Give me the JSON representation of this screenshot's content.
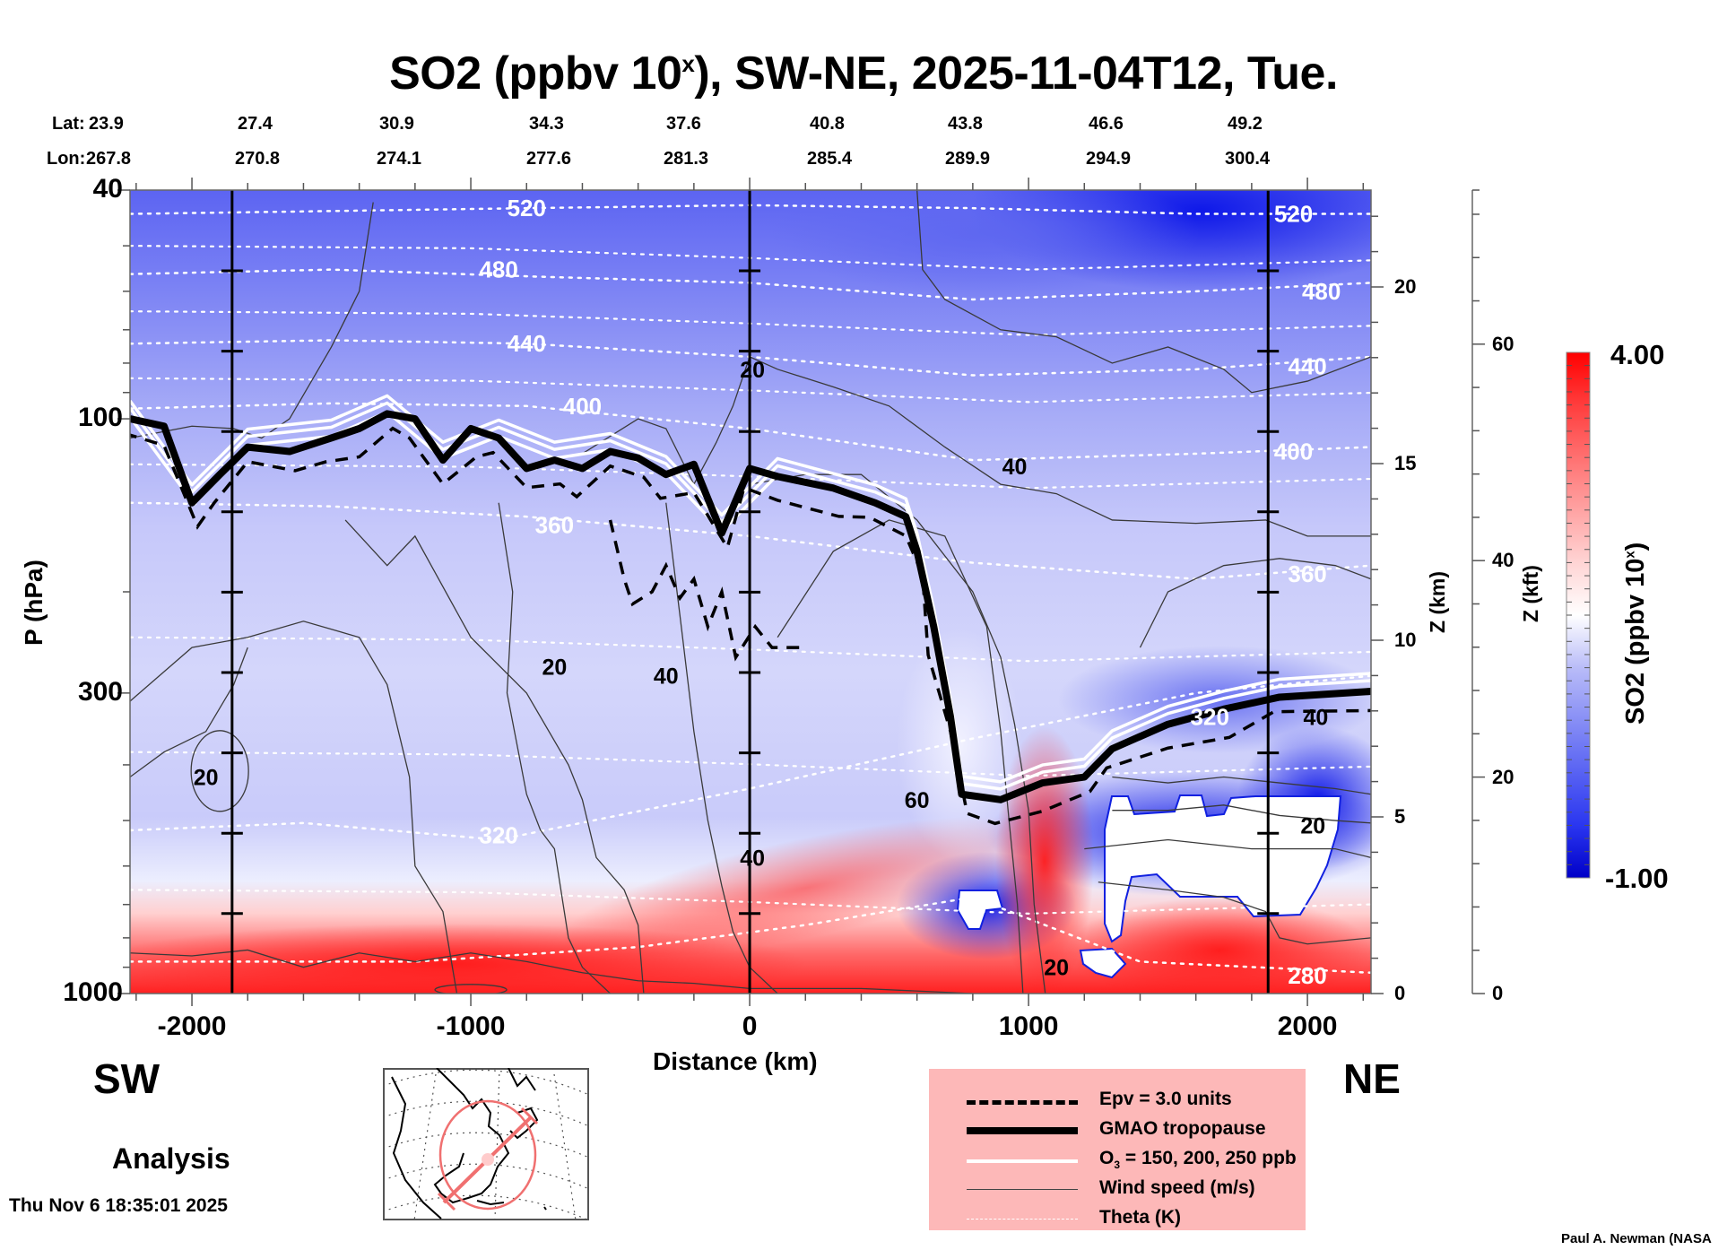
{
  "title": {
    "main": "SO2 (ppbv 10",
    "sup": "x",
    "rest": "), SW-NE, 2025-11-04T12, Tue."
  },
  "geo": {
    "lat_label": "Lat:",
    "lon_label": "Lon:",
    "lat": [
      "23.9",
      "27.4",
      "30.9",
      "34.3",
      "37.6",
      "40.8",
      "43.8",
      "46.6",
      "49.2"
    ],
    "lon": [
      "267.8",
      "270.8",
      "274.1",
      "277.6",
      "281.3",
      "285.4",
      "289.9",
      "294.9",
      "300.4"
    ]
  },
  "labels": {
    "sw": "SW",
    "ne": "NE",
    "analysis": "Analysis",
    "timestamp": "Thu Nov  6 18:35:01 2025",
    "credit": "Paul A. Newman (NASA"
  },
  "legend": {
    "items": [
      {
        "style": "dashed",
        "text": "Epv = 3.0 units"
      },
      {
        "style": "thick",
        "text": "GMAO tropopause"
      },
      {
        "style": "white",
        "text_pre": "O",
        "text_sub": "3",
        "text": " = 150, 200, 250 ppb"
      },
      {
        "style": "thin",
        "text": "Wind speed (m/s)"
      },
      {
        "style": "dotted",
        "text": "Theta (K)"
      }
    ]
  },
  "colors": {
    "legend_bg": "#fdb8b8",
    "cbar_low": "#0000cc",
    "cbar_mid": "#ffffff",
    "cbar_high": "#ff0000",
    "theta_line": "#ffffff",
    "wind_line": "#3a3a3a",
    "map_circle": "#f07070"
  },
  "chart_data": {
    "type": "heatmap",
    "title": "SO2 (ppbv 10^x), SW-NE, 2025-11-04T12, Tue.",
    "xlabel": "Distance (km)",
    "ylabel": "P (hPa)",
    "y2label": "Z (km)",
    "y3label": "Z (kft)",
    "colorbar_label": "SO2 (ppbv 10^x)",
    "xlim": [
      -2222,
      2228
    ],
    "ylim": [
      1000,
      40
    ],
    "yscale": "log",
    "xticks": [
      -2000,
      -1000,
      0,
      1000,
      2000
    ],
    "xtick_labels": [
      "-2000",
      "-1000",
      "0",
      "1000",
      "2000"
    ],
    "yticks": [
      40,
      100,
      300,
      1000
    ],
    "ytick_labels": [
      "40",
      "100",
      "300",
      "1000"
    ],
    "zkm_ticks": [
      0,
      5,
      10,
      15,
      20
    ],
    "zkm_tick_labels": [
      "0",
      "5",
      "10",
      "15",
      "20"
    ],
    "zkft_ticks": [
      0,
      20,
      40,
      60
    ],
    "zkft_tick_labels": [
      "0",
      "20",
      "40",
      "60"
    ],
    "colorbar": {
      "min": -1.0,
      "max": 4.0,
      "min_label": "-1.00",
      "max_label": "4.00",
      "levels": 40
    },
    "grid": false,
    "vertical_markers_km": [
      -1856,
      0,
      1859
    ],
    "theta_contours": [
      {
        "level": 520,
        "label": "520",
        "points": [
          [
            -2222,
            44
          ],
          [
            -1500,
            43.5
          ],
          [
            -800,
            43
          ],
          [
            0,
            42.5
          ],
          [
            800,
            43
          ],
          [
            1600,
            44
          ],
          [
            2228,
            44
          ]
        ],
        "label_at": [
          [
            -800,
            43
          ],
          [
            1950,
            44
          ]
        ]
      },
      {
        "level": 480,
        "label": "480",
        "points": [
          [
            -2222,
            56
          ],
          [
            -1500,
            55
          ],
          [
            -800,
            56.5
          ],
          [
            0,
            58
          ],
          [
            800,
            62
          ],
          [
            1600,
            60
          ],
          [
            2228,
            58
          ]
        ],
        "label_at": [
          [
            -900,
            55
          ],
          [
            2050,
            60
          ]
        ]
      },
      {
        "level": 440,
        "label": "440",
        "points": [
          [
            -2222,
            74
          ],
          [
            -1500,
            73
          ],
          [
            -800,
            74
          ],
          [
            0,
            78
          ],
          [
            800,
            84
          ],
          [
            1600,
            82
          ],
          [
            2228,
            78
          ]
        ],
        "label_at": [
          [
            -800,
            74
          ],
          [
            2000,
            81
          ]
        ]
      },
      {
        "level": 400,
        "label": "400",
        "points": [
          [
            -2222,
            96
          ],
          [
            -1500,
            94
          ],
          [
            -800,
            95
          ],
          [
            0,
            104
          ],
          [
            800,
            118
          ],
          [
            1600,
            115
          ],
          [
            2228,
            112
          ]
        ],
        "label_at": [
          [
            -600,
            95
          ],
          [
            1950,
            114
          ]
        ]
      },
      {
        "level": 360,
        "label": "360",
        "points": [
          [
            -2222,
            140
          ],
          [
            -1500,
            142
          ],
          [
            -800,
            148
          ],
          [
            0,
            160
          ],
          [
            800,
            178
          ],
          [
            1600,
            190
          ],
          [
            2228,
            180
          ]
        ],
        "label_at": [
          [
            -700,
            153
          ],
          [
            2000,
            186
          ]
        ]
      },
      {
        "level": 320,
        "label": "320",
        "points": [
          [
            -2222,
            520
          ],
          [
            -1600,
            505
          ],
          [
            -900,
            540
          ],
          [
            0,
            440
          ],
          [
            800,
            360
          ],
          [
            1600,
            300
          ],
          [
            2228,
            280
          ]
        ],
        "label_at": [
          [
            -900,
            530
          ],
          [
            1650,
            330
          ]
        ]
      },
      {
        "level": 280,
        "label": "280",
        "points": [
          [
            -2222,
            880
          ],
          [
            -1200,
            880
          ],
          [
            -400,
            830
          ],
          [
            200,
            760
          ],
          [
            800,
            680
          ],
          [
            1400,
            880
          ],
          [
            2228,
            920
          ]
        ],
        "label_at": [
          [
            2000,
            930
          ]
        ]
      }
    ],
    "tropopause": [
      [
        -2222,
        100
      ],
      [
        -2100,
        103
      ],
      [
        -2000,
        140
      ],
      [
        -1900,
        125
      ],
      [
        -1800,
        112
      ],
      [
        -1650,
        114
      ],
      [
        -1500,
        108
      ],
      [
        -1400,
        104
      ],
      [
        -1300,
        98
      ],
      [
        -1200,
        100
      ],
      [
        -1100,
        118
      ],
      [
        -1000,
        104
      ],
      [
        -900,
        108
      ],
      [
        -800,
        122
      ],
      [
        -700,
        118
      ],
      [
        -600,
        122
      ],
      [
        -500,
        114
      ],
      [
        -400,
        117
      ],
      [
        -300,
        125
      ],
      [
        -200,
        120
      ],
      [
        -100,
        158
      ],
      [
        0,
        122
      ],
      [
        100,
        126
      ],
      [
        300,
        132
      ],
      [
        450,
        140
      ],
      [
        560,
        148
      ],
      [
        600,
        170
      ],
      [
        660,
        230
      ],
      [
        720,
        330
      ],
      [
        760,
        450
      ],
      [
        900,
        460
      ],
      [
        1050,
        430
      ],
      [
        1200,
        420
      ],
      [
        1300,
        375
      ],
      [
        1500,
        340
      ],
      [
        1700,
        320
      ],
      [
        1900,
        305
      ],
      [
        2228,
        298
      ]
    ],
    "o3_contours_ppb": [
      150,
      200,
      250
    ],
    "epv_level": 3.0,
    "wind_speed_levels": [
      20,
      40,
      60
    ],
    "wind_labels": [
      [
        10,
        82,
        "20"
      ],
      [
        -700,
        270,
        "20"
      ],
      [
        -300,
        280,
        "40"
      ],
      [
        -1950,
        420,
        "20"
      ],
      [
        950,
        121,
        "40"
      ],
      [
        600,
        460,
        "60"
      ],
      [
        10,
        580,
        "40"
      ],
      [
        1100,
        900,
        "20"
      ],
      [
        2030,
        330,
        "40"
      ],
      [
        2020,
        510,
        "20"
      ]
    ],
    "so2_regions": [
      {
        "desc": "stratosphere",
        "value_range": [
          -0.6,
          -0.2
        ]
      },
      {
        "desc": "upper troposphere",
        "value_range": [
          -0.1,
          0.3
        ]
      },
      {
        "desc": "boundary layer",
        "value_range": [
          2.5,
          4.0
        ]
      },
      {
        "desc": "missing below cloud (white)",
        "value": null
      }
    ]
  },
  "map": {
    "projection": "polar-stereographic North America",
    "track": "SW-NE",
    "circle": true
  }
}
